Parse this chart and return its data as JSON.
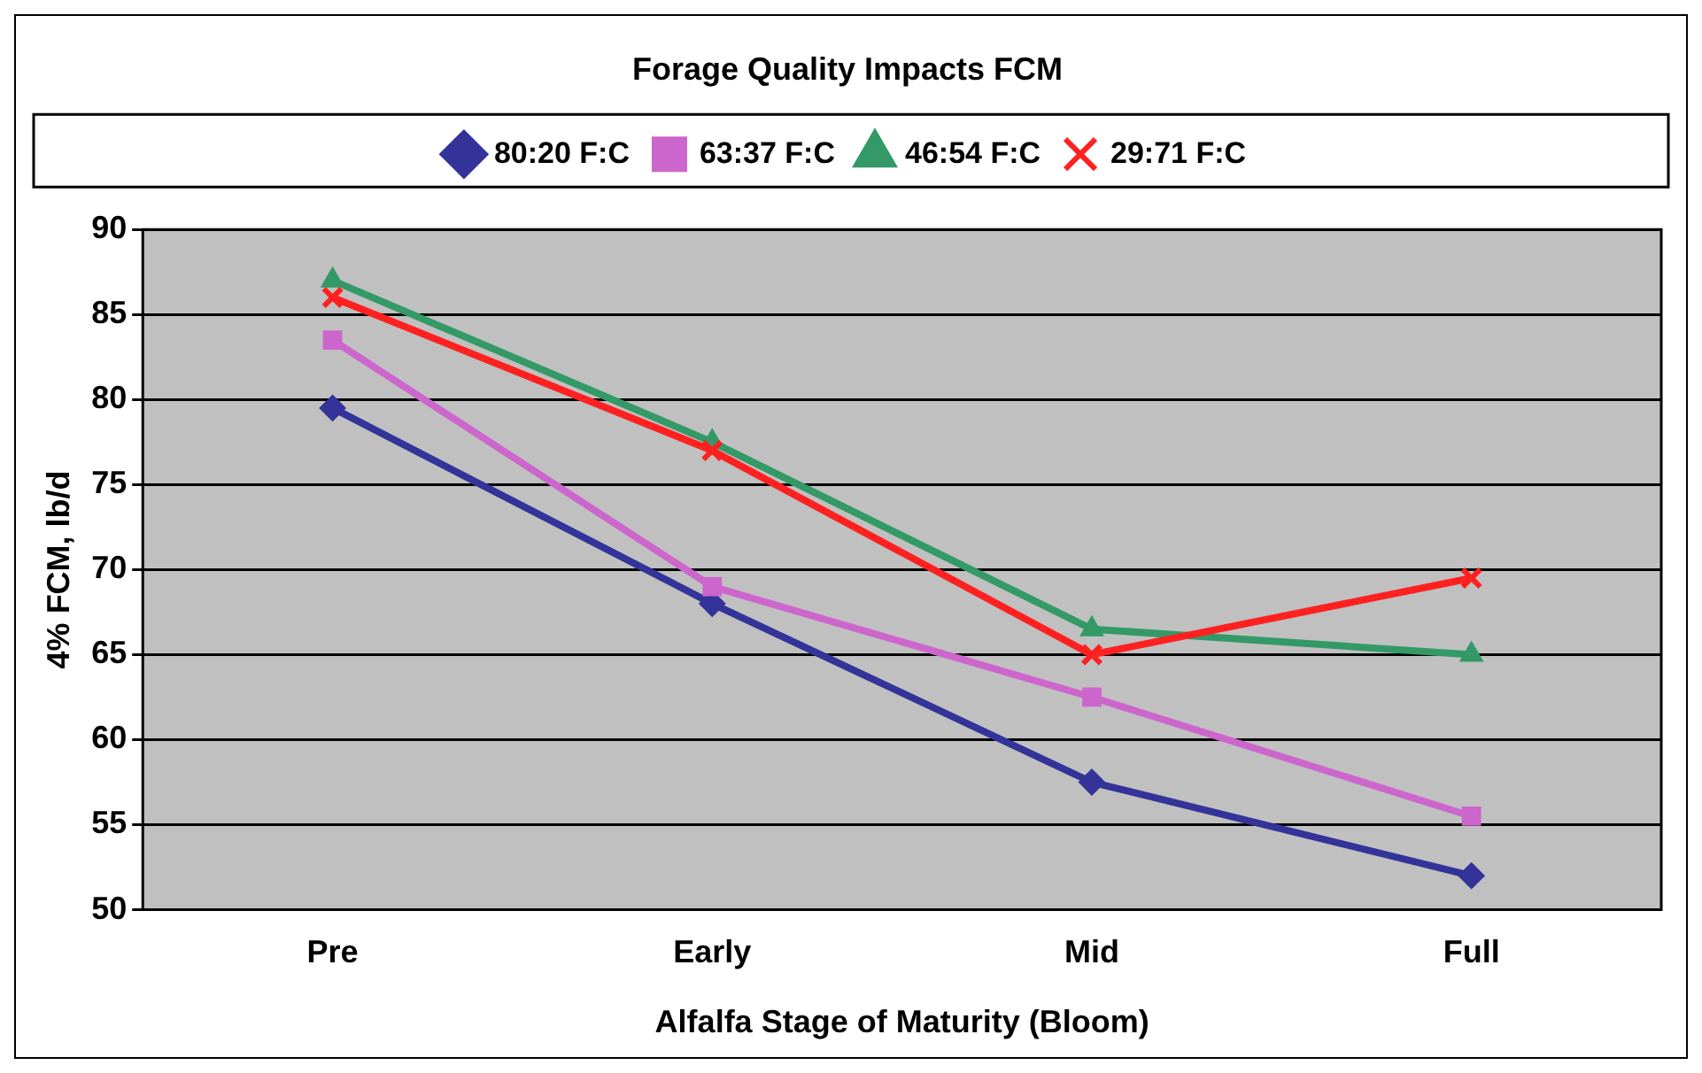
{
  "chart_data": {
    "type": "line",
    "title": "Forage Quality Impacts FCM",
    "xlabel": "Alfalfa Stage of Maturity (Bloom)",
    "ylabel": "4% FCM, lb/d",
    "categories": [
      "Pre",
      "Early",
      "Mid",
      "Full"
    ],
    "series": [
      {
        "name": "80:20 F:C",
        "color": "#333399",
        "marker": "diamond",
        "values": [
          79.5,
          68,
          57.5,
          52
        ]
      },
      {
        "name": "63:37 F:C",
        "color": "#cc66cc",
        "marker": "square",
        "values": [
          83.5,
          69,
          62.5,
          55.5
        ]
      },
      {
        "name": "46:54 F:C",
        "color": "#339966",
        "marker": "triangle",
        "values": [
          87,
          77.5,
          66.5,
          65
        ]
      },
      {
        "name": "29:71 F:C",
        "color": "#ff2020",
        "marker": "cross",
        "values": [
          86,
          77,
          65,
          69.5
        ]
      }
    ],
    "ylim": [
      50,
      90
    ],
    "yticks": [
      50,
      55,
      60,
      65,
      70,
      75,
      80,
      85,
      90
    ],
    "grid": "y",
    "legend": "top",
    "line_style": "solid"
  }
}
